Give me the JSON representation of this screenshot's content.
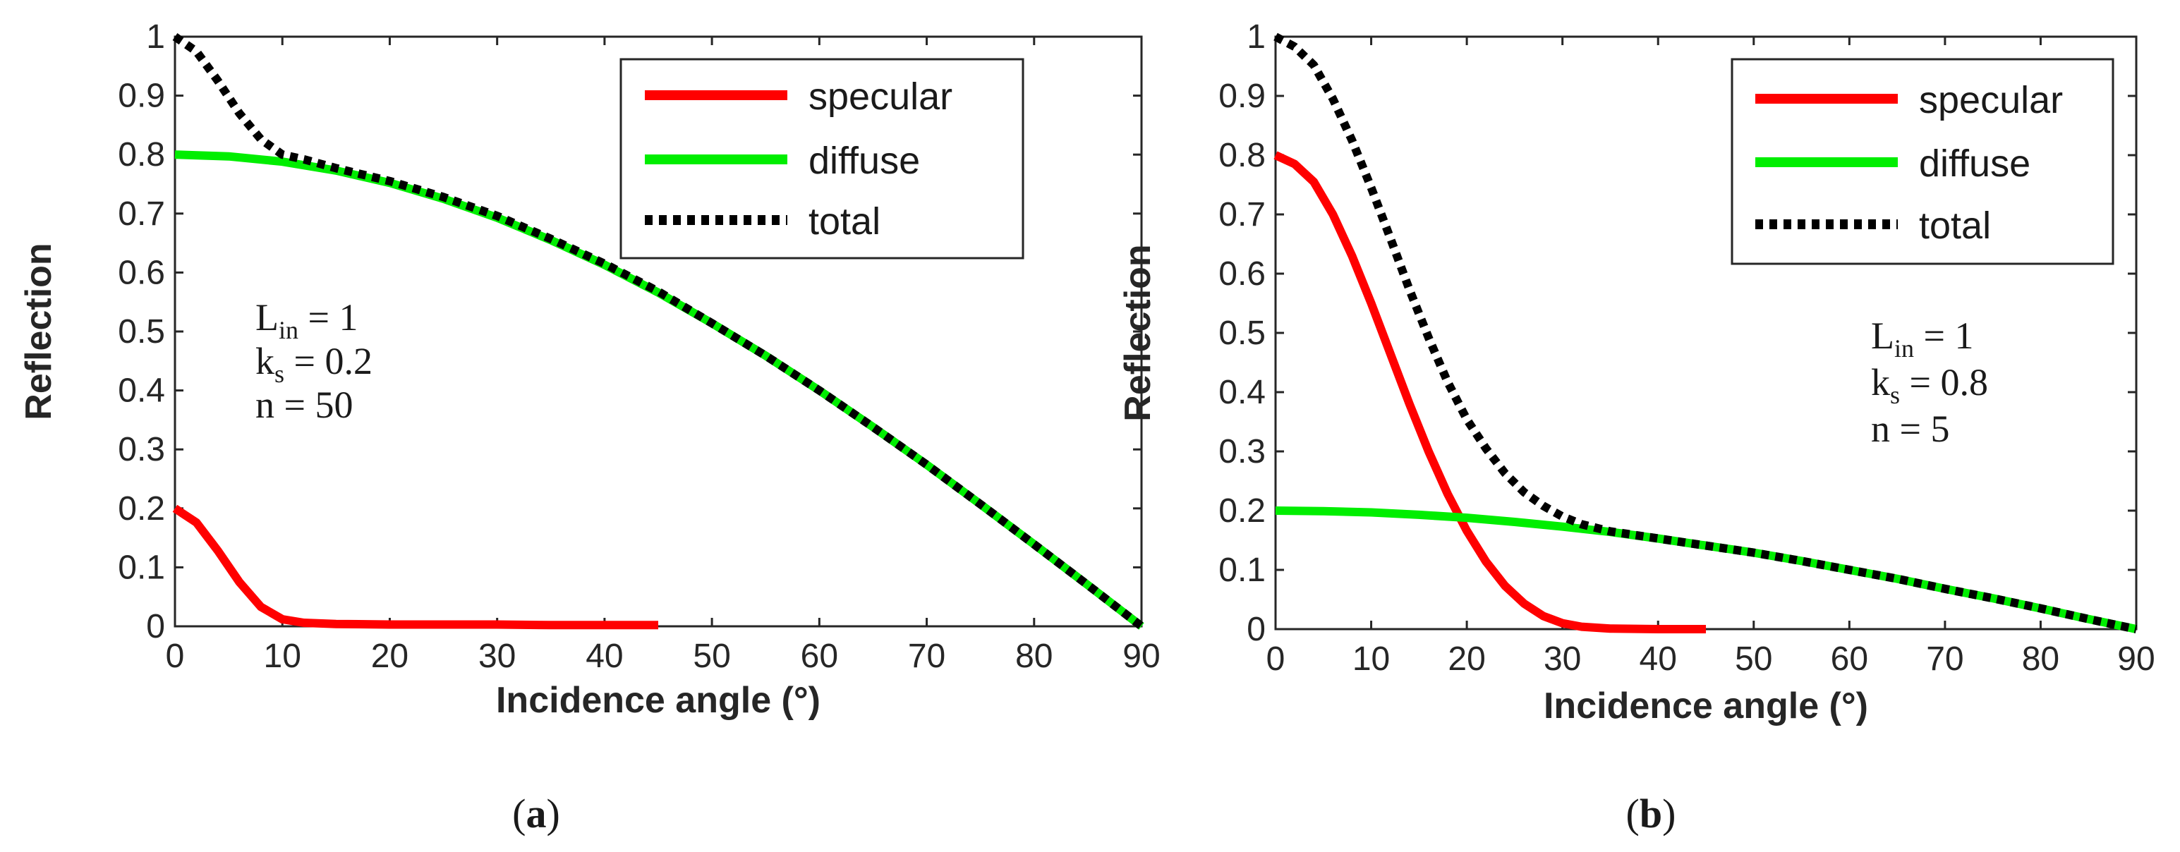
{
  "chart_data": [
    {
      "type": "line",
      "panel": "a",
      "caption": {
        "open": "(",
        "letter": "a",
        "close": ")"
      },
      "xlabel": "Incidence angle (°)",
      "ylabel": "Reflection",
      "xlim": [
        0,
        90
      ],
      "ylim": [
        0,
        1
      ],
      "xticks": [
        "0",
        "10",
        "20",
        "30",
        "40",
        "50",
        "60",
        "70",
        "80",
        "90"
      ],
      "yticks": [
        "0",
        "0.1",
        "0.2",
        "0.3",
        "0.4",
        "0.5",
        "0.6",
        "0.7",
        "0.8",
        "0.9",
        "1"
      ],
      "grid": false,
      "legend_position": "top-right",
      "annotations": [
        {
          "base": "L",
          "sub": "in",
          "rest": " = 1"
        },
        {
          "base": "k",
          "sub": "s",
          "rest": " = 0.2"
        },
        {
          "base": "n = 50",
          "sub": "",
          "rest": ""
        }
      ],
      "series": [
        {
          "name": "specular",
          "color": "#ff0000",
          "style": "solid",
          "x": [
            0,
            2,
            4,
            6,
            8,
            10,
            12,
            15,
            20,
            25,
            30,
            35,
            40,
            45
          ],
          "y": [
            0.2,
            0.176,
            0.128,
            0.075,
            0.033,
            0.012,
            0.006,
            0.004,
            0.003,
            0.003,
            0.003,
            0.002,
            0.002,
            0.002
          ]
        },
        {
          "name": "diffuse",
          "color": "#00ee00",
          "style": "solid",
          "x": [
            0,
            5,
            10,
            15,
            20,
            25,
            30,
            35,
            40,
            45,
            50,
            55,
            60,
            65,
            70,
            75,
            80,
            85,
            90
          ],
          "y": [
            0.8,
            0.797,
            0.788,
            0.773,
            0.752,
            0.725,
            0.693,
            0.655,
            0.613,
            0.566,
            0.514,
            0.459,
            0.4,
            0.338,
            0.274,
            0.207,
            0.139,
            0.07,
            0.0
          ]
        },
        {
          "name": "total",
          "color": "#000000",
          "style": "dotted",
          "x": [
            0,
            2,
            4,
            6,
            8,
            10,
            12,
            15,
            20,
            25,
            30,
            35,
            40,
            45,
            50,
            55,
            60,
            65,
            70,
            75,
            80,
            85,
            90
          ],
          "y": [
            1.0,
            0.975,
            0.925,
            0.87,
            0.826,
            0.8,
            0.792,
            0.777,
            0.755,
            0.728,
            0.696,
            0.657,
            0.615,
            0.568,
            0.514,
            0.459,
            0.4,
            0.338,
            0.274,
            0.207,
            0.139,
            0.07,
            0.0
          ]
        }
      ]
    },
    {
      "type": "line",
      "panel": "b",
      "caption": {
        "open": "(",
        "letter": "b",
        "close": ")"
      },
      "xlabel": "Incidence angle (°)",
      "ylabel": "Reflection",
      "xlim": [
        0,
        90
      ],
      "ylim": [
        0,
        1
      ],
      "xticks": [
        "0",
        "10",
        "20",
        "30",
        "40",
        "50",
        "60",
        "70",
        "80",
        "90"
      ],
      "yticks": [
        "0",
        "0.1",
        "0.2",
        "0.3",
        "0.4",
        "0.5",
        "0.6",
        "0.7",
        "0.8",
        "0.9",
        "1"
      ],
      "grid": false,
      "legend_position": "top-right",
      "annotations": [
        {
          "base": "L",
          "sub": "in",
          "rest": " = 1"
        },
        {
          "base": "k",
          "sub": "s",
          "rest": " = 0.8"
        },
        {
          "base": "n = 5",
          "sub": "",
          "rest": ""
        }
      ],
      "series": [
        {
          "name": "specular",
          "color": "#ff0000",
          "style": "solid",
          "x": [
            0,
            2,
            4,
            6,
            8,
            10,
            12,
            14,
            16,
            18,
            20,
            22,
            24,
            26,
            28,
            30,
            32,
            35,
            40,
            45
          ],
          "y": [
            0.8,
            0.785,
            0.755,
            0.7,
            0.63,
            0.55,
            0.465,
            0.38,
            0.3,
            0.228,
            0.166,
            0.114,
            0.073,
            0.043,
            0.022,
            0.01,
            0.004,
            0.001,
            0.0,
            0.0
          ]
        },
        {
          "name": "diffuse",
          "color": "#00ee00",
          "style": "solid",
          "x": [
            0,
            5,
            10,
            15,
            20,
            25,
            30,
            35,
            40,
            45,
            50,
            55,
            60,
            65,
            70,
            75,
            80,
            85,
            90
          ],
          "y": [
            0.2,
            0.199,
            0.197,
            0.193,
            0.188,
            0.181,
            0.173,
            0.164,
            0.153,
            0.141,
            0.129,
            0.115,
            0.1,
            0.085,
            0.068,
            0.052,
            0.035,
            0.017,
            0.0
          ]
        },
        {
          "name": "total",
          "color": "#000000",
          "style": "dotted",
          "x": [
            0,
            2,
            4,
            6,
            8,
            10,
            12,
            14,
            16,
            18,
            20,
            22,
            24,
            26,
            28,
            30,
            32,
            35,
            40,
            45,
            50,
            55,
            60,
            65,
            70,
            75,
            80,
            85,
            90
          ],
          "y": [
            1.0,
            0.983,
            0.952,
            0.895,
            0.825,
            0.745,
            0.66,
            0.573,
            0.492,
            0.417,
            0.354,
            0.305,
            0.263,
            0.231,
            0.208,
            0.19,
            0.177,
            0.165,
            0.153,
            0.141,
            0.129,
            0.115,
            0.1,
            0.085,
            0.068,
            0.052,
            0.035,
            0.017,
            0.0
          ]
        }
      ]
    }
  ]
}
